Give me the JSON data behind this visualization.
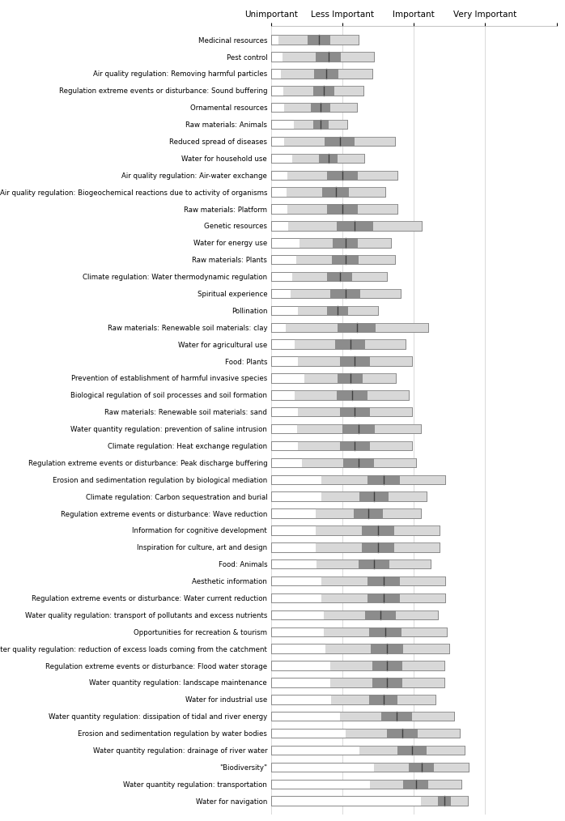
{
  "categories": [
    "Medicinal resources",
    "Pest control",
    "Air quality regulation: Removing harmful particles",
    "Regulation extreme events or disturbance: Sound buffering",
    "Ornamental resources",
    "Raw materials: Animals",
    "Reduced spread of diseases",
    "Water for household use",
    "Air quality regulation: Air-water exchange",
    "Air quality regulation: Biogeochemical reactions due to activity of organisms",
    "Raw materials: Platform",
    "Genetic resources",
    "Water for energy use",
    "Raw materials: Plants",
    "Climate regulation: Water thermodynamic regulation",
    "Spiritual experience",
    "Pollination",
    "Raw materials: Renewable soil materials: clay",
    "Water for agricultural use",
    "Food: Plants",
    "Prevention of establishment of harmful invasive species",
    "Biological regulation of soil processes and soil formation",
    "Raw materials: Renewable soil materials: sand",
    "Water quantity regulation: prevention of saline intrusion",
    "Climate regulation: Heat exchange regulation",
    "Regulation extreme events or disturbance: Peak discharge buffering",
    "Erosion and sedimentation regulation by biological mediation",
    "Climate regulation: Carbon sequestration and burial",
    "Regulation extreme events or disturbance: Wave reduction",
    "Information for cognitive development",
    "Inspiration for culture, art and design",
    "Food: Animals",
    "Aesthetic information",
    "Regulation extreme events or disturbance: Water current reduction",
    "Water quality regulation: transport of pollutants and excess nutrients",
    "Opportunities for recreation & tourism",
    "Water quality regulation: reduction of excess loads coming from the catchment",
    "Regulation extreme events or disturbance: Flood water storage",
    "Water quantity regulation: landscape maintenance",
    "Water for industrial use",
    "Water quantity regulation: dissipation of tidal and river energy",
    "Erosion and sedimentation regulation by water bodies",
    "Water quantity regulation: drainage of river water",
    "\"Biodiversity\"",
    "Water quantity regulation: transportation",
    "Water for navigation"
  ],
  "means": [
    1.5,
    1.6,
    1.58,
    1.55,
    1.52,
    1.52,
    1.72,
    1.6,
    1.75,
    1.68,
    1.75,
    1.88,
    1.78,
    1.78,
    1.72,
    1.78,
    1.7,
    1.9,
    1.83,
    1.88,
    1.83,
    1.85,
    1.88,
    1.92,
    1.88,
    1.92,
    2.18,
    2.08,
    2.02,
    2.12,
    2.12,
    2.08,
    2.18,
    2.18,
    2.15,
    2.2,
    2.22,
    2.22,
    2.22,
    2.18,
    2.32,
    2.38,
    2.48,
    2.58,
    2.52,
    2.82
  ],
  "sd": [
    0.42,
    0.48,
    0.48,
    0.42,
    0.38,
    0.28,
    0.58,
    0.38,
    0.58,
    0.52,
    0.58,
    0.7,
    0.48,
    0.52,
    0.5,
    0.58,
    0.42,
    0.75,
    0.58,
    0.6,
    0.48,
    0.6,
    0.6,
    0.65,
    0.6,
    0.6,
    0.65,
    0.55,
    0.55,
    0.65,
    0.65,
    0.6,
    0.65,
    0.65,
    0.6,
    0.65,
    0.65,
    0.6,
    0.6,
    0.55,
    0.6,
    0.6,
    0.55,
    0.5,
    0.48,
    0.25
  ],
  "se": [
    0.12,
    0.13,
    0.13,
    0.11,
    0.1,
    0.08,
    0.16,
    0.1,
    0.16,
    0.14,
    0.16,
    0.19,
    0.13,
    0.14,
    0.13,
    0.16,
    0.11,
    0.2,
    0.16,
    0.16,
    0.13,
    0.16,
    0.16,
    0.17,
    0.16,
    0.16,
    0.17,
    0.15,
    0.15,
    0.17,
    0.17,
    0.16,
    0.17,
    0.17,
    0.16,
    0.17,
    0.17,
    0.16,
    0.16,
    0.15,
    0.16,
    0.16,
    0.15,
    0.13,
    0.13,
    0.07
  ],
  "xmin": 1.0,
  "xmax": 4.0,
  "xtick_positions": [
    1.0,
    1.75,
    2.5,
    3.25,
    4.0
  ],
  "xtick_labels": [
    "Unimportant",
    "Less Important",
    "Important",
    "Very Important",
    ""
  ],
  "color_white": "#ffffff",
  "color_sd": "#d8d8d8",
  "color_se": "#8c8c8c",
  "color_mean_line": "#404040",
  "color_bar_edge": "#888888",
  "color_grid": "#cccccc",
  "bar_height": 0.55,
  "background_color": "#ffffff",
  "label_fontsize": 6.2,
  "tick_fontsize": 7.5
}
